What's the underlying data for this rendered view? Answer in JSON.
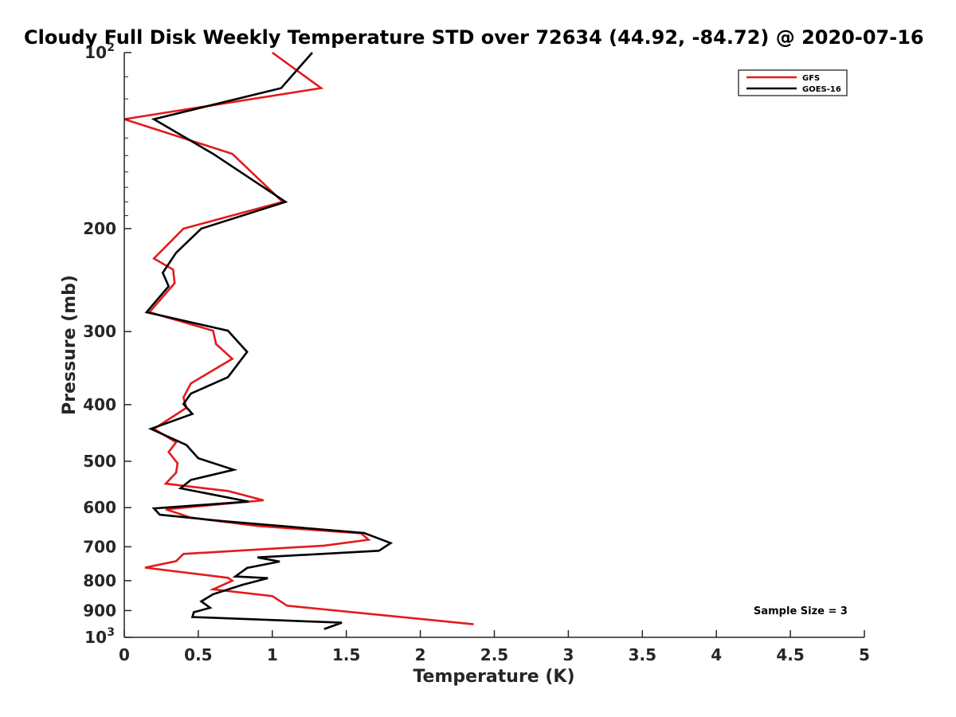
{
  "chart_data": {
    "type": "line",
    "title": "Cloudy Full Disk Weekly Temperature STD over 72634 (44.92, -84.72) @ 2020-07-16",
    "xlabel": "Temperature (K)",
    "ylabel": "Pressure (mb)",
    "xlim": [
      0,
      5
    ],
    "ylim": [
      100,
      1000
    ],
    "y_scale": "log",
    "y_reversed": true,
    "grid": false,
    "legend_position": "top-right",
    "x_ticks": [
      "0",
      "0.5",
      "1",
      "1.5",
      "2",
      "2.5",
      "3",
      "3.5",
      "4",
      "4.5",
      "5"
    ],
    "y_ticks": [
      {
        "value": 100,
        "label": "10",
        "sup": "2"
      },
      {
        "value": 200,
        "label": "200",
        "sup": ""
      },
      {
        "value": 300,
        "label": "300",
        "sup": ""
      },
      {
        "value": 400,
        "label": "400",
        "sup": ""
      },
      {
        "value": 500,
        "label": "500",
        "sup": ""
      },
      {
        "value": 600,
        "label": "600",
        "sup": ""
      },
      {
        "value": 700,
        "label": "700",
        "sup": ""
      },
      {
        "value": 800,
        "label": "800",
        "sup": ""
      },
      {
        "value": 900,
        "label": "900",
        "sup": ""
      },
      {
        "value": 1000,
        "label": "10",
        "sup": "3"
      }
    ],
    "annotation": "Sample Size = 3",
    "series": [
      {
        "name": "GFS",
        "color": "#e31a1c",
        "points": [
          [
            1.0,
            100
          ],
          [
            1.33,
            115
          ],
          [
            0.0,
            130
          ],
          [
            0.73,
            149
          ],
          [
            1.07,
            180
          ],
          [
            0.4,
            200
          ],
          [
            0.2,
            225
          ],
          [
            0.33,
            235
          ],
          [
            0.34,
            248
          ],
          [
            0.17,
            278
          ],
          [
            0.6,
            299
          ],
          [
            0.62,
            315
          ],
          [
            0.73,
            334
          ],
          [
            0.45,
            368
          ],
          [
            0.4,
            389
          ],
          [
            0.42,
            405
          ],
          [
            0.2,
            440
          ],
          [
            0.35,
            464
          ],
          [
            0.3,
            482
          ],
          [
            0.36,
            504
          ],
          [
            0.35,
            523
          ],
          [
            0.28,
            546
          ],
          [
            0.7,
            562
          ],
          [
            0.94,
            583
          ],
          [
            0.28,
            604
          ],
          [
            0.45,
            624
          ],
          [
            0.9,
            645
          ],
          [
            1.6,
            664
          ],
          [
            1.65,
            681
          ],
          [
            1.35,
            697
          ],
          [
            0.4,
            720
          ],
          [
            0.35,
            741
          ],
          [
            0.14,
            760
          ],
          [
            0.7,
            791
          ],
          [
            0.73,
            800
          ],
          [
            0.6,
            828
          ],
          [
            1.0,
            850
          ],
          [
            1.1,
            883
          ],
          [
            2.36,
            950
          ]
        ]
      },
      {
        "name": "GOES-16",
        "color": "#000000",
        "points": [
          [
            1.27,
            100
          ],
          [
            1.06,
            115
          ],
          [
            0.2,
            130
          ],
          [
            0.6,
            149
          ],
          [
            1.09,
            180
          ],
          [
            0.52,
            200
          ],
          [
            0.35,
            220
          ],
          [
            0.26,
            238
          ],
          [
            0.3,
            251
          ],
          [
            0.15,
            278
          ],
          [
            0.7,
            299
          ],
          [
            0.83,
            325
          ],
          [
            0.7,
            359
          ],
          [
            0.45,
            383
          ],
          [
            0.4,
            399
          ],
          [
            0.46,
            415
          ],
          [
            0.18,
            440
          ],
          [
            0.42,
            469
          ],
          [
            0.5,
            494
          ],
          [
            0.74,
            517
          ],
          [
            0.45,
            538
          ],
          [
            0.38,
            556
          ],
          [
            0.84,
            586
          ],
          [
            0.2,
            602
          ],
          [
            0.24,
            617
          ],
          [
            0.67,
            633
          ],
          [
            1.62,
            663
          ],
          [
            1.8,
            690
          ],
          [
            1.72,
            711
          ],
          [
            0.9,
            730
          ],
          [
            1.05,
            742
          ],
          [
            0.83,
            761
          ],
          [
            0.75,
            787
          ],
          [
            0.97,
            792
          ],
          [
            0.8,
            813
          ],
          [
            0.6,
            844
          ],
          [
            0.52,
            868
          ],
          [
            0.58,
            890
          ],
          [
            0.47,
            906
          ],
          [
            0.46,
            923
          ],
          [
            1.47,
            944
          ],
          [
            1.35,
            968
          ]
        ]
      }
    ]
  }
}
